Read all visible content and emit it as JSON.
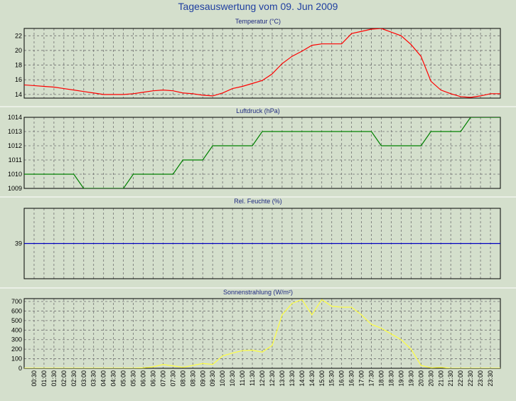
{
  "page": {
    "title": "Tagesauswertung vom 09. Jun 2009"
  },
  "chart_data": [
    {
      "type": "line",
      "title": "Temperatur (°C)",
      "ylim": [
        13.5,
        23
      ],
      "yticks": [
        14,
        16,
        18,
        20,
        22
      ],
      "x": [
        "00:00",
        "00:30",
        "01:00",
        "01:30",
        "02:00",
        "02:30",
        "03:00",
        "03:30",
        "04:00",
        "04:30",
        "05:00",
        "05:30",
        "06:00",
        "06:30",
        "07:00",
        "07:30",
        "08:00",
        "08:30",
        "09:00",
        "09:30",
        "10:00",
        "10:30",
        "11:00",
        "11:30",
        "12:00",
        "12:30",
        "13:00",
        "13:30",
        "14:00",
        "14:30",
        "15:00",
        "15:30",
        "16:00",
        "16:30",
        "17:00",
        "17:30",
        "18:00",
        "18:30",
        "19:00",
        "19:30",
        "20:00",
        "20:30",
        "21:00",
        "21:30",
        "22:00",
        "22:30",
        "23:00",
        "23:30"
      ],
      "series": [
        {
          "color": "#ff0000",
          "values": [
            15.3,
            15.2,
            15.1,
            15.0,
            14.8,
            14.6,
            14.4,
            14.2,
            14.0,
            14.0,
            14.0,
            14.1,
            14.3,
            14.5,
            14.6,
            14.5,
            14.2,
            14.1,
            13.9,
            13.8,
            14.2,
            14.8,
            15.1,
            15.5,
            15.9,
            16.8,
            18.2,
            19.2,
            19.9,
            20.7,
            20.9,
            20.9,
            20.9,
            22.3,
            22.6,
            22.9,
            23.0,
            22.5,
            22.0,
            20.8,
            19.2,
            15.8,
            14.6,
            14.1,
            13.7,
            13.6,
            13.8,
            14.1
          ]
        }
      ],
      "grid": true
    },
    {
      "type": "line",
      "title": "Luftdruck (hPa)",
      "ylim": [
        1009,
        1014
      ],
      "yticks": [
        1009,
        1010,
        1011,
        1012,
        1013,
        1014
      ],
      "x": [
        "00:00",
        "00:30",
        "01:00",
        "01:30",
        "02:00",
        "02:30",
        "03:00",
        "03:30",
        "04:00",
        "04:30",
        "05:00",
        "05:30",
        "06:00",
        "06:30",
        "07:00",
        "07:30",
        "08:00",
        "08:30",
        "09:00",
        "09:30",
        "10:00",
        "10:30",
        "11:00",
        "11:30",
        "12:00",
        "12:30",
        "13:00",
        "13:30",
        "14:00",
        "14:30",
        "15:00",
        "15:30",
        "16:00",
        "16:30",
        "17:00",
        "17:30",
        "18:00",
        "18:30",
        "19:00",
        "19:30",
        "20:00",
        "20:30",
        "21:00",
        "21:30",
        "22:00",
        "22:30",
        "23:00",
        "23:30"
      ],
      "series": [
        {
          "color": "#008000",
          "values": [
            1010,
            1010,
            1010,
            1010,
            1010,
            1010,
            1009,
            1009,
            1009,
            1009,
            1009,
            1010,
            1010,
            1010,
            1010,
            1010,
            1011,
            1011,
            1011,
            1012,
            1012,
            1012,
            1012,
            1012,
            1013,
            1013,
            1013,
            1013,
            1013,
            1013,
            1013,
            1013,
            1013,
            1013,
            1013,
            1013,
            1012,
            1012,
            1012,
            1012,
            1012,
            1013,
            1013,
            1013,
            1013,
            1014,
            1014,
            1014
          ]
        }
      ],
      "grid": true
    },
    {
      "type": "line",
      "title": "Rel. Feuchte (%)",
      "ylim": [
        34,
        44
      ],
      "yticks": [
        39
      ],
      "x": [
        "00:00",
        "23:30"
      ],
      "series": [
        {
          "color": "#0000c0",
          "values": [
            39,
            39
          ]
        }
      ],
      "grid": true
    },
    {
      "type": "line",
      "title": "Sonnenstrahlung (W/m²)",
      "ylim": [
        0,
        730
      ],
      "yticks": [
        0,
        100,
        200,
        300,
        400,
        500,
        600,
        700
      ],
      "x": [
        "00:00",
        "00:30",
        "01:00",
        "01:30",
        "02:00",
        "02:30",
        "03:00",
        "03:30",
        "04:00",
        "04:30",
        "05:00",
        "05:30",
        "06:00",
        "06:30",
        "07:00",
        "07:30",
        "08:00",
        "08:30",
        "09:00",
        "09:30",
        "10:00",
        "10:30",
        "11:00",
        "11:30",
        "12:00",
        "12:30",
        "13:00",
        "13:30",
        "14:00",
        "14:30",
        "15:00",
        "15:30",
        "16:00",
        "16:30",
        "17:00",
        "17:30",
        "18:00",
        "18:30",
        "19:00",
        "19:30",
        "20:00",
        "20:30",
        "21:00",
        "21:30",
        "22:00",
        "22:30",
        "23:00",
        "23:30"
      ],
      "series": [
        {
          "color": "#ffff40",
          "values": [
            0,
            0,
            0,
            0,
            0,
            0,
            0,
            0,
            0,
            0,
            0,
            0,
            5,
            15,
            40,
            25,
            10,
            30,
            50,
            40,
            130,
            160,
            185,
            190,
            170,
            240,
            560,
            680,
            720,
            560,
            720,
            650,
            640,
            640,
            560,
            460,
            420,
            360,
            300,
            200,
            30,
            5,
            10,
            0,
            0,
            0,
            0,
            0
          ]
        }
      ],
      "grid": true
    }
  ],
  "x_axis": {
    "tick_labels": [
      "00:30",
      "01:00",
      "01:30",
      "02:00",
      "02:30",
      "03:00",
      "03:30",
      "04:00",
      "04:30",
      "05:00",
      "05:30",
      "06:00",
      "06:30",
      "07:00",
      "07:30",
      "08:00",
      "08:30",
      "09:00",
      "09:30",
      "10:00",
      "10:30",
      "11:00",
      "11:30",
      "12:00",
      "12:30",
      "13:00",
      "13:30",
      "14:00",
      "14:30",
      "15:00",
      "15:30",
      "16:00",
      "16:30",
      "17:00",
      "17:30",
      "18:00",
      "18:30",
      "19:00",
      "19:30",
      "20:00",
      "20:30",
      "21:00",
      "21:30",
      "22:00",
      "22:30",
      "23:00",
      "23:30"
    ]
  },
  "colors": {
    "background": "#d4dfcc",
    "plot_bg": "#d4dfcc",
    "grid": "#707070",
    "title_text": "#1f3fa0"
  }
}
